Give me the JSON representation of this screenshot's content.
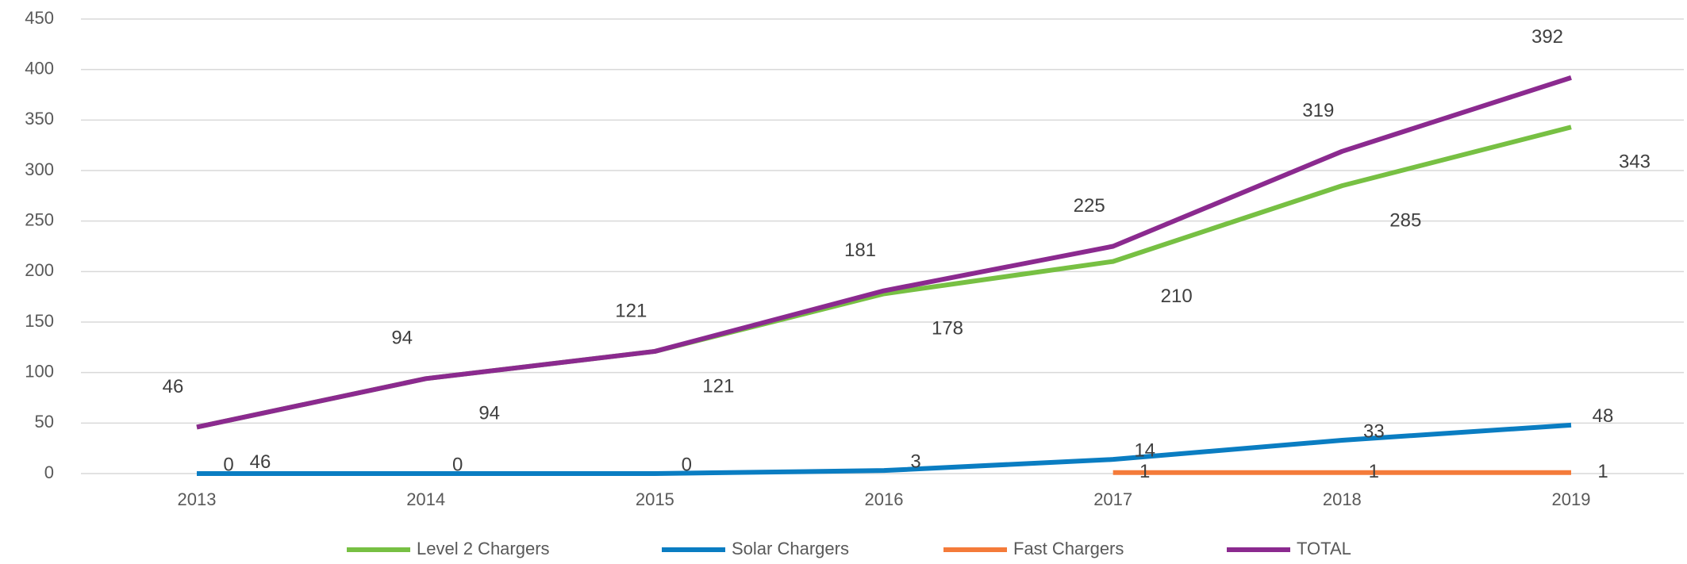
{
  "chart_data": {
    "type": "line",
    "categories": [
      "2013",
      "2014",
      "2015",
      "2016",
      "2017",
      "2018",
      "2019"
    ],
    "series": [
      {
        "name": "Level 2 Chargers",
        "color": "#77c043",
        "values": [
          46,
          94,
          121,
          178,
          210,
          285,
          343
        ]
      },
      {
        "name": "Solar Chargers",
        "color": "#0a7dc2",
        "values": [
          0,
          0,
          0,
          3,
          14,
          33,
          48
        ]
      },
      {
        "name": "Fast Chargers",
        "color": "#f47b3a",
        "values": [
          null,
          null,
          null,
          null,
          1,
          1,
          1
        ]
      },
      {
        "name": "TOTAL",
        "color": "#8b2a8f",
        "values": [
          46,
          94,
          121,
          181,
          225,
          319,
          392
        ]
      }
    ],
    "ylim": [
      0,
      450
    ],
    "yticks": [
      0,
      50,
      100,
      150,
      200,
      250,
      300,
      350,
      400,
      450
    ],
    "grid": true,
    "legend": "bottom"
  }
}
